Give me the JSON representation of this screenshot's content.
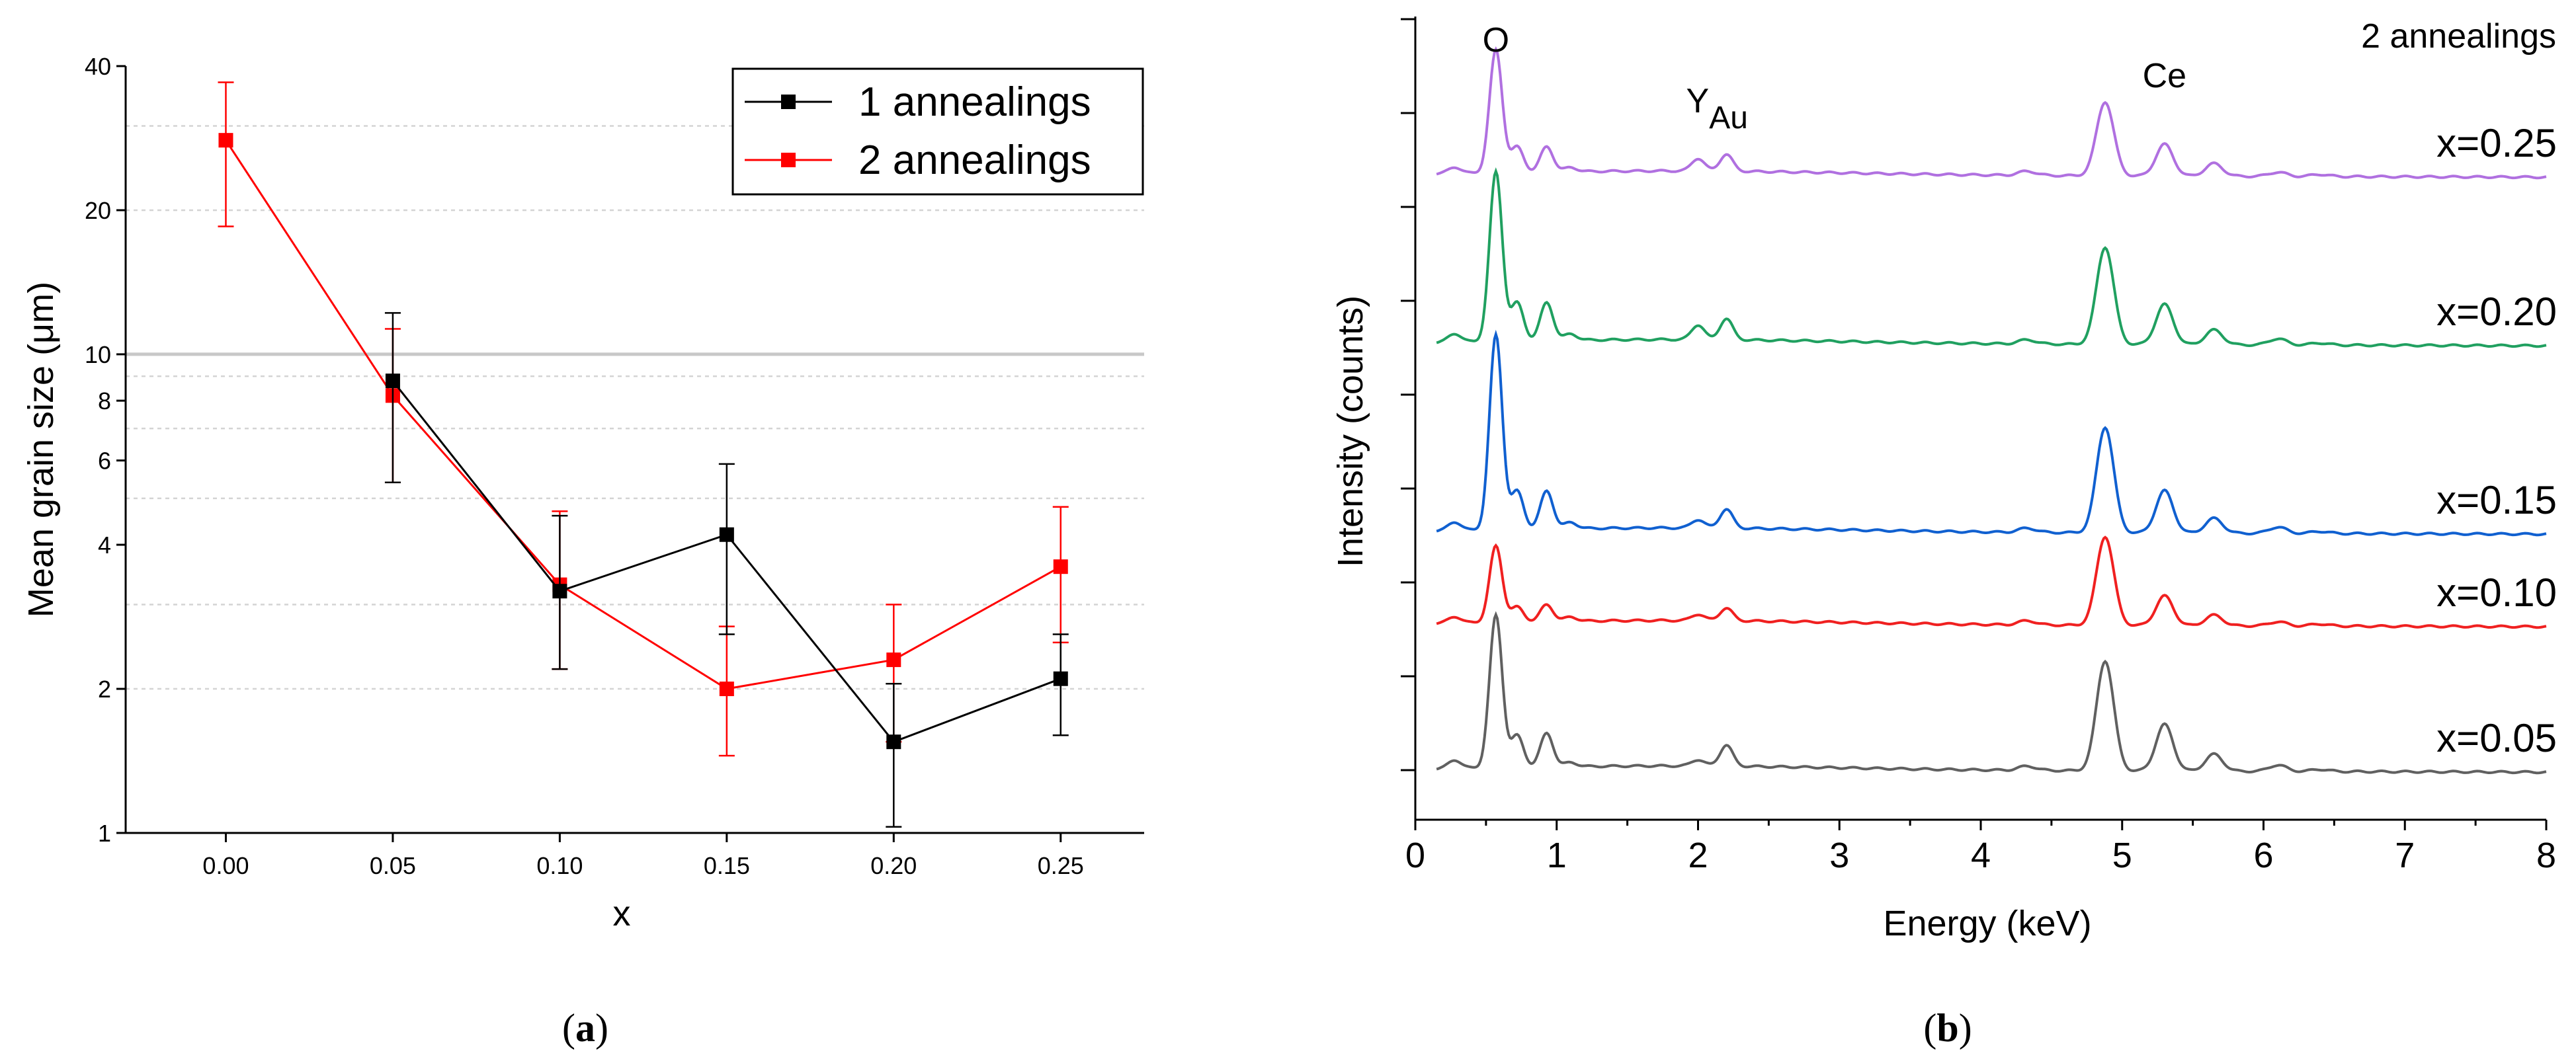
{
  "chart_data": [
    {
      "type": "line",
      "panel_label": "(a)",
      "panel_letter": "a",
      "xlabel": "x",
      "ylabel": "Mean grain size (μm)",
      "yscale": "log",
      "xlim": [
        -0.03,
        0.275
      ],
      "ylim": [
        1,
        40
      ],
      "x_ticks": [
        0.0,
        0.05,
        0.1,
        0.15,
        0.2,
        0.25
      ],
      "x_tick_labels": [
        "0.00",
        "0.05",
        "0.10",
        "0.15",
        "0.20",
        "0.25"
      ],
      "y_ticks": [
        1,
        2,
        4,
        6,
        8,
        10,
        20,
        40
      ],
      "y_tick_labels": [
        "1",
        "2",
        "4",
        "6",
        "8",
        "10",
        "20",
        "40"
      ],
      "grid_lines": [
        2,
        3,
        5,
        7,
        9,
        20,
        30
      ],
      "reference_line": 10,
      "legend_position": "top-right",
      "series": [
        {
          "name": "1 annealings",
          "color": "#000000",
          "x": [
            0.05,
            0.1,
            0.15,
            0.2,
            0.25
          ],
          "y": [
            8.8,
            3.2,
            4.2,
            1.55,
            2.1
          ],
          "err_low": [
            5.4,
            2.2,
            2.6,
            1.03,
            1.6
          ],
          "err_high": [
            12.2,
            4.6,
            5.9,
            2.05,
            2.6
          ]
        },
        {
          "name": "2 annealings",
          "color": "#ff0000",
          "x": [
            0.0,
            0.05,
            0.1,
            0.15,
            0.2,
            0.25
          ],
          "y": [
            28.0,
            8.2,
            3.3,
            2.0,
            2.3,
            3.6
          ],
          "err_low": [
            18.5,
            5.4,
            2.2,
            1.45,
            1.55,
            2.5
          ],
          "err_high": [
            37.0,
            11.3,
            4.7,
            2.7,
            3.0,
            4.8
          ]
        }
      ]
    },
    {
      "type": "line",
      "panel_label": "(b)",
      "panel_letter": "b",
      "title": "2 annealings",
      "xlabel": "Energy (keV)",
      "ylabel": "Intensity (counts)",
      "xlim": [
        0,
        8
      ],
      "x_ticks": [
        0,
        1,
        2,
        3,
        4,
        5,
        6,
        7,
        8
      ],
      "x_tick_labels": [
        "0",
        "1",
        "2",
        "3",
        "4",
        "5",
        "6",
        "7",
        "8"
      ],
      "peak_labels": [
        {
          "text": "O",
          "energy": 0.57
        },
        {
          "text": "Y",
          "sub": "Au",
          "energy": 2.0
        },
        {
          "text": "Ce",
          "energy": 5.3
        }
      ],
      "peaks_keV": [
        0.28,
        0.57,
        0.72,
        0.93,
        1.1,
        2.0,
        2.2,
        4.33,
        4.88,
        5.3,
        5.65,
        6.1,
        6.4
      ],
      "series": [
        {
          "name": "x=0.25",
          "color": "#b070e0",
          "offset": 4,
          "peak_heights": [
            0.03,
            0.58,
            0.12,
            0.12,
            0.02,
            0.06,
            0.08,
            0.02,
            0.35,
            0.15,
            0.06,
            0.02,
            0.01
          ]
        },
        {
          "name": "x=0.20",
          "color": "#20a060",
          "offset": 3,
          "peak_heights": [
            0.04,
            0.8,
            0.18,
            0.18,
            0.03,
            0.07,
            0.1,
            0.02,
            0.46,
            0.19,
            0.07,
            0.03,
            0.01
          ]
        },
        {
          "name": "x=0.15",
          "color": "#1060d0",
          "offset": 2,
          "peak_heights": [
            0.04,
            0.92,
            0.18,
            0.18,
            0.03,
            0.04,
            0.09,
            0.02,
            0.5,
            0.2,
            0.07,
            0.03,
            0.01
          ]
        },
        {
          "name": "x=0.10",
          "color": "#f02020",
          "offset": 1,
          "peak_heights": [
            0.03,
            0.36,
            0.07,
            0.08,
            0.02,
            0.03,
            0.06,
            0.02,
            0.42,
            0.14,
            0.05,
            0.02,
            0.01
          ]
        },
        {
          "name": "x=0.05",
          "color": "#606060",
          "offset": 0,
          "peak_heights": [
            0.04,
            0.72,
            0.15,
            0.16,
            0.02,
            0.03,
            0.1,
            0.02,
            0.52,
            0.22,
            0.08,
            0.03,
            0.01
          ]
        }
      ]
    }
  ]
}
